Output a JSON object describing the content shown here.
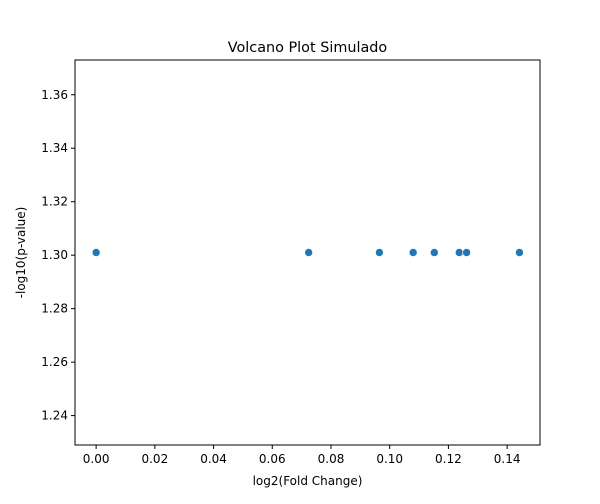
{
  "chart_data": {
    "type": "scatter",
    "title": "Volcano Plot Simulado",
    "xlabel": "log2(Fold Change)",
    "ylabel": "-log10(p-value)",
    "xlim": [
      -0.0072,
      0.1512
    ],
    "ylim": [
      1.229,
      1.373
    ],
    "xticks": [
      0.0,
      0.02,
      0.04,
      0.06,
      0.08,
      0.1,
      0.12,
      0.14
    ],
    "xtick_labels": [
      "0.00",
      "0.02",
      "0.04",
      "0.06",
      "0.08",
      "0.10",
      "0.12",
      "0.14"
    ],
    "yticks": [
      1.24,
      1.26,
      1.28,
      1.3,
      1.32,
      1.34,
      1.36
    ],
    "ytick_labels": [
      "1.24",
      "1.26",
      "1.28",
      "1.30",
      "1.32",
      "1.34",
      "1.36"
    ],
    "grid": false,
    "legend": "none",
    "marker_color": "#1f77b4",
    "points": [
      {
        "x": 0.0,
        "y": 1.301
      },
      {
        "x": 0.0724,
        "y": 1.301
      },
      {
        "x": 0.0965,
        "y": 1.301
      },
      {
        "x": 0.108,
        "y": 1.301
      },
      {
        "x": 0.1152,
        "y": 1.301
      },
      {
        "x": 0.1237,
        "y": 1.301
      },
      {
        "x": 0.1262,
        "y": 1.301
      },
      {
        "x": 0.1442,
        "y": 1.301
      }
    ]
  }
}
